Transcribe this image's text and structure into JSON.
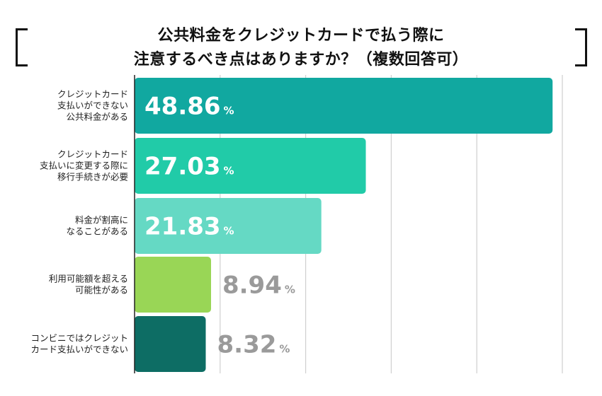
{
  "title_line1": "公共料金をクレジットカードで払う際に",
  "title_line2": "注意するべき点はありますか？（複数回答可）",
  "percent_sign": "%",
  "colors": {
    "bar1": "#11a8a0",
    "bar2": "#21cba8",
    "bar3": "#65d9c4",
    "bar4": "#99d656",
    "bar5": "#0d6d64",
    "value_inside": "#ffffff",
    "value_outside": "#9a9a9a",
    "grid": "#cfcfcf",
    "axis": "#222222"
  },
  "chart_data": {
    "type": "bar",
    "orientation": "horizontal",
    "title": "公共料金をクレジットカードで払う際に注意するべき点はありますか？（複数回答可）",
    "unit": "%",
    "xlim": [
      0,
      50
    ],
    "grid": true,
    "categories": [
      [
        "クレジットカード",
        "支払いができない",
        "公共料金がある"
      ],
      [
        "クレジットカード",
        "支払いに変更する際に",
        "移行手続きが必要"
      ],
      [
        "料金が割高に",
        "なることがある"
      ],
      [
        "利用可能額を超える",
        "可能性がある"
      ],
      [
        "コンビニではクレジット",
        "カード支払いができない"
      ]
    ],
    "values": [
      48.86,
      27.03,
      21.83,
      8.94,
      8.32
    ],
    "value_labels": [
      "48.86",
      "27.03",
      "21.83",
      "8.94",
      "8.32"
    ]
  }
}
